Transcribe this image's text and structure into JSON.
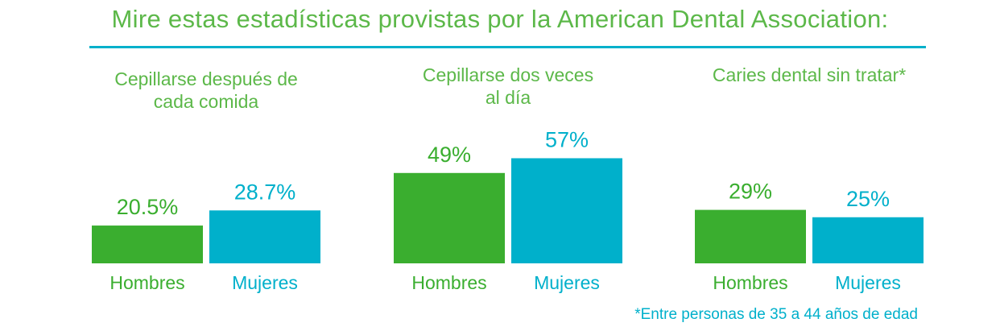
{
  "page": {
    "title": "Mire estas estadísticas provistas por la American Dental Association:",
    "footnote": "*Entre personas de 35 a 44 años de edad"
  },
  "colors": {
    "hombres": "#3aae2f",
    "mujeres": "#00b0cb",
    "title_text": "#5cb849",
    "rule": "#00b0cb"
  },
  "chart_data": [
    {
      "type": "bar",
      "title": "Cepillarse después de cada comida",
      "title_lines": [
        "Cepillarse después de",
        "cada comida"
      ],
      "categories": [
        "Hombres",
        "Mujeres"
      ],
      "values": [
        20.5,
        28.7
      ],
      "value_labels": [
        "20.5%",
        "28.7%"
      ],
      "ylim": [
        0,
        100
      ],
      "grid": false
    },
    {
      "type": "bar",
      "title": "Cepillarse dos veces al día",
      "title_lines": [
        "Cepillarse dos veces",
        "al día"
      ],
      "categories": [
        "Hombres",
        "Mujeres"
      ],
      "values": [
        49,
        57
      ],
      "value_labels": [
        "49%",
        "57%"
      ],
      "ylim": [
        0,
        100
      ],
      "grid": false
    },
    {
      "type": "bar",
      "title": "Caries dental sin tratar*",
      "title_lines": [
        "Caries dental sin tratar*"
      ],
      "categories": [
        "Hombres",
        "Mujeres"
      ],
      "values": [
        29,
        25
      ],
      "value_labels": [
        "29%",
        "25%"
      ],
      "ylim": [
        0,
        100
      ],
      "grid": false
    }
  ]
}
